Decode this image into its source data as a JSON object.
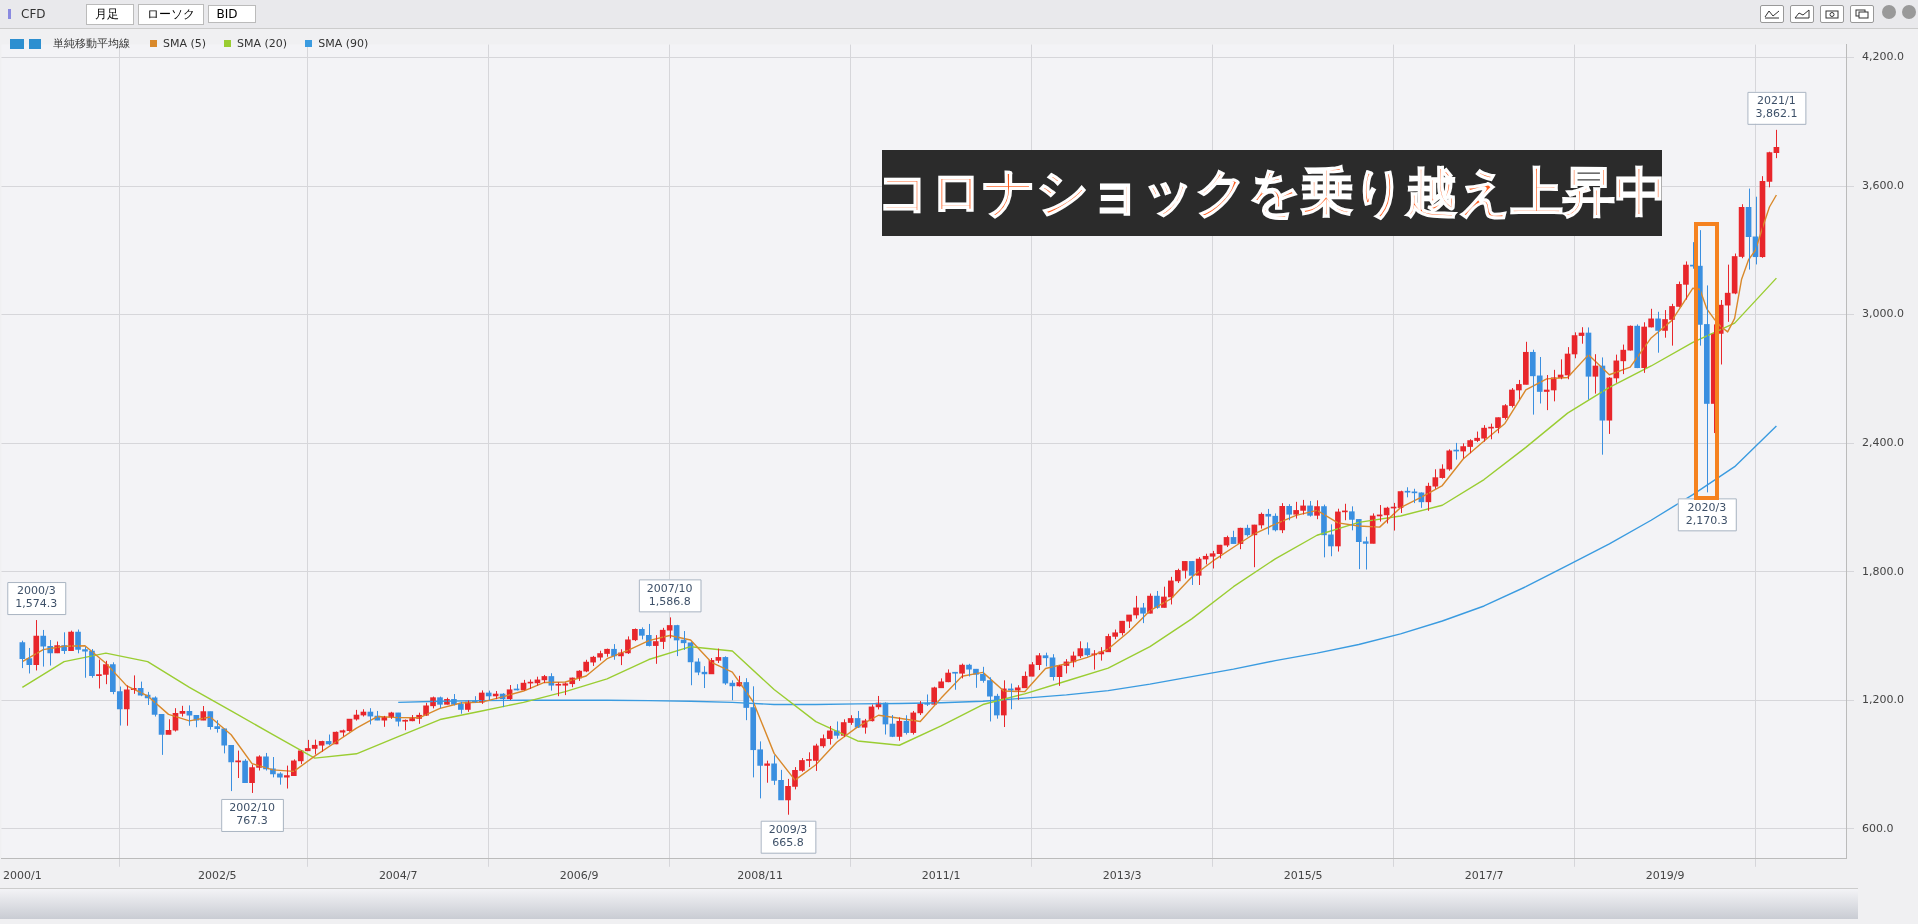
{
  "chart_data": {
    "type": "candlestick",
    "x": [
      "2000-01",
      "2000-02",
      "2000-03",
      "2000-04",
      "2000-05",
      "2000-06",
      "2000-07",
      "2000-08",
      "2000-09",
      "2000-10",
      "2000-11",
      "2000-12",
      "2001-01",
      "2001-02",
      "2001-03",
      "2001-04",
      "2001-05",
      "2001-06",
      "2001-07",
      "2001-08",
      "2001-09",
      "2001-10",
      "2001-11",
      "2001-12",
      "2002-01",
      "2002-02",
      "2002-03",
      "2002-04",
      "2002-05",
      "2002-06",
      "2002-07",
      "2002-08",
      "2002-09",
      "2002-10",
      "2002-11",
      "2002-12",
      "2003-01",
      "2003-02",
      "2003-03",
      "2003-04",
      "2003-05",
      "2003-06",
      "2003-07",
      "2003-08",
      "2003-09",
      "2003-10",
      "2003-11",
      "2003-12",
      "2004-01",
      "2004-02",
      "2004-03",
      "2004-04",
      "2004-05",
      "2004-06",
      "2004-07",
      "2004-08",
      "2004-09",
      "2004-10",
      "2004-11",
      "2004-12",
      "2005-01",
      "2005-02",
      "2005-03",
      "2005-04",
      "2005-05",
      "2005-06",
      "2005-07",
      "2005-08",
      "2005-09",
      "2005-10",
      "2005-11",
      "2005-12",
      "2006-01",
      "2006-02",
      "2006-03",
      "2006-04",
      "2006-05",
      "2006-06",
      "2006-07",
      "2006-08",
      "2006-09",
      "2006-10",
      "2006-11",
      "2006-12",
      "2007-01",
      "2007-02",
      "2007-03",
      "2007-04",
      "2007-05",
      "2007-06",
      "2007-07",
      "2007-08",
      "2007-09",
      "2007-10",
      "2007-11",
      "2007-12",
      "2008-01",
      "2008-02",
      "2008-03",
      "2008-04",
      "2008-05",
      "2008-06",
      "2008-07",
      "2008-08",
      "2008-09",
      "2008-10",
      "2008-11",
      "2008-12",
      "2009-01",
      "2009-02",
      "2009-03",
      "2009-04",
      "2009-05",
      "2009-06",
      "2009-07",
      "2009-08",
      "2009-09",
      "2009-10",
      "2009-11",
      "2009-12",
      "2010-01",
      "2010-02",
      "2010-03",
      "2010-04",
      "2010-05",
      "2010-06",
      "2010-07",
      "2010-08",
      "2010-09",
      "2010-10",
      "2010-11",
      "2010-12",
      "2011-01",
      "2011-02",
      "2011-03",
      "2011-04",
      "2011-05",
      "2011-06",
      "2011-07",
      "2011-08",
      "2011-09",
      "2011-10",
      "2011-11",
      "2011-12",
      "2012-01",
      "2012-02",
      "2012-03",
      "2012-04",
      "2012-05",
      "2012-06",
      "2012-07",
      "2012-08",
      "2012-09",
      "2012-10",
      "2012-11",
      "2012-12",
      "2013-01",
      "2013-02",
      "2013-03",
      "2013-04",
      "2013-05",
      "2013-06",
      "2013-07",
      "2013-08",
      "2013-09",
      "2013-10",
      "2013-11",
      "2013-12",
      "2014-01",
      "2014-02",
      "2014-03",
      "2014-04",
      "2014-05",
      "2014-06",
      "2014-07",
      "2014-08",
      "2014-09",
      "2014-10",
      "2014-11",
      "2014-12",
      "2015-01",
      "2015-02",
      "2015-03",
      "2015-04",
      "2015-05",
      "2015-06",
      "2015-07",
      "2015-08",
      "2015-09",
      "2015-10",
      "2015-11",
      "2015-12",
      "2016-01",
      "2016-02",
      "2016-03",
      "2016-04",
      "2016-05",
      "2016-06",
      "2016-07",
      "2016-08",
      "2016-09",
      "2016-10",
      "2016-11",
      "2016-12",
      "2017-01",
      "2017-02",
      "2017-03",
      "2017-04",
      "2017-05",
      "2017-06",
      "2017-07",
      "2017-08",
      "2017-09",
      "2017-10",
      "2017-11",
      "2017-12",
      "2018-01",
      "2018-02",
      "2018-03",
      "2018-04",
      "2018-05",
      "2018-06",
      "2018-07",
      "2018-08",
      "2018-09",
      "2018-10",
      "2018-11",
      "2018-12",
      "2019-01",
      "2019-02",
      "2019-03",
      "2019-04",
      "2019-05",
      "2019-06",
      "2019-07",
      "2019-08",
      "2019-09",
      "2019-10",
      "2019-11",
      "2019-12",
      "2020-01",
      "2020-02",
      "2020-03",
      "2020-04",
      "2020-05",
      "2020-06",
      "2020-07",
      "2020-08",
      "2020-09",
      "2020-10",
      "2020-11",
      "2020-12",
      "2021-01"
    ],
    "ohlc": [
      [
        1469,
        1478,
        1350,
        1394
      ],
      [
        1394,
        1444,
        1325,
        1366
      ],
      [
        1366,
        1574.3,
        1339,
        1499
      ],
      [
        1499,
        1528,
        1357,
        1452
      ],
      [
        1452,
        1481,
        1362,
        1421
      ],
      [
        1421,
        1474,
        1420,
        1455
      ],
      [
        1455,
        1517,
        1416,
        1431
      ],
      [
        1431,
        1525,
        1431,
        1518
      ],
      [
        1518,
        1530,
        1419,
        1437
      ],
      [
        1437,
        1449,
        1305,
        1429
      ],
      [
        1429,
        1439,
        1305,
        1315
      ],
      [
        1315,
        1390,
        1255,
        1320
      ],
      [
        1320,
        1384,
        1275,
        1366
      ],
      [
        1366,
        1377,
        1228,
        1240
      ],
      [
        1240,
        1264,
        1082,
        1160
      ],
      [
        1160,
        1269,
        1081,
        1249
      ],
      [
        1249,
        1316,
        1230,
        1256
      ],
      [
        1256,
        1287,
        1219,
        1224
      ],
      [
        1224,
        1239,
        1178,
        1211
      ],
      [
        1211,
        1218,
        1124,
        1134
      ],
      [
        1134,
        1135,
        945,
        1041
      ],
      [
        1041,
        1111,
        1041,
        1060
      ],
      [
        1060,
        1163,
        1054,
        1139
      ],
      [
        1139,
        1174,
        1124,
        1148
      ],
      [
        1148,
        1176,
        1081,
        1130
      ],
      [
        1130,
        1130,
        1074,
        1107
      ],
      [
        1107,
        1173,
        1107,
        1147
      ],
      [
        1147,
        1147,
        1063,
        1077
      ],
      [
        1077,
        1107,
        1049,
        1067
      ],
      [
        1067,
        1067,
        952,
        990
      ],
      [
        990,
        990,
        776,
        912
      ],
      [
        912,
        965,
        837,
        916
      ],
      [
        916,
        925,
        815,
        815
      ],
      [
        815,
        900,
        767.3,
        886
      ],
      [
        886,
        943,
        872,
        936
      ],
      [
        936,
        954,
        872,
        880
      ],
      [
        880,
        935,
        840,
        856
      ],
      [
        856,
        864,
        806,
        841
      ],
      [
        841,
        895,
        788,
        848
      ],
      [
        848,
        924,
        847,
        917
      ],
      [
        917,
        966,
        902,
        964
      ],
      [
        964,
        1015,
        963,
        975
      ],
      [
        975,
        1016,
        947,
        990
      ],
      [
        990,
        1011,
        960,
        1008
      ],
      [
        1008,
        1040,
        990,
        996
      ],
      [
        996,
        1054,
        995,
        1051
      ],
      [
        1051,
        1063,
        1031,
        1058
      ],
      [
        1058,
        1112,
        1053,
        1112
      ],
      [
        1112,
        1155,
        1105,
        1131
      ],
      [
        1131,
        1158,
        1124,
        1145
      ],
      [
        1145,
        1163,
        1087,
        1126
      ],
      [
        1126,
        1150,
        1107,
        1107
      ],
      [
        1107,
        1127,
        1076,
        1121
      ],
      [
        1121,
        1146,
        1113,
        1141
      ],
      [
        1141,
        1141,
        1078,
        1102
      ],
      [
        1102,
        1110,
        1060,
        1104
      ],
      [
        1104,
        1131,
        1102,
        1115
      ],
      [
        1115,
        1142,
        1090,
        1130
      ],
      [
        1130,
        1188,
        1127,
        1174
      ],
      [
        1174,
        1217,
        1162,
        1212
      ],
      [
        1212,
        1217,
        1163,
        1181
      ],
      [
        1181,
        1212,
        1180,
        1204
      ],
      [
        1204,
        1229,
        1176,
        1181
      ],
      [
        1181,
        1192,
        1137,
        1157
      ],
      [
        1157,
        1199,
        1146,
        1192
      ],
      [
        1192,
        1219,
        1188,
        1191
      ],
      [
        1191,
        1246,
        1183,
        1234
      ],
      [
        1234,
        1245,
        1201,
        1220
      ],
      [
        1220,
        1243,
        1205,
        1229
      ],
      [
        1229,
        1233,
        1168,
        1207
      ],
      [
        1207,
        1271,
        1201,
        1249
      ],
      [
        1249,
        1275,
        1246,
        1248
      ],
      [
        1248,
        1295,
        1245,
        1280
      ],
      [
        1280,
        1297,
        1253,
        1281
      ],
      [
        1281,
        1310,
        1268,
        1295
      ],
      [
        1295,
        1318,
        1280,
        1311
      ],
      [
        1311,
        1326,
        1245,
        1270
      ],
      [
        1270,
        1284,
        1219,
        1270
      ],
      [
        1270,
        1283,
        1224,
        1277
      ],
      [
        1277,
        1306,
        1261,
        1304
      ],
      [
        1304,
        1340,
        1290,
        1336
      ],
      [
        1336,
        1389,
        1331,
        1378
      ],
      [
        1378,
        1407,
        1360,
        1401
      ],
      [
        1401,
        1431,
        1385,
        1418
      ],
      [
        1418,
        1441,
        1403,
        1438
      ],
      [
        1438,
        1462,
        1389,
        1407
      ],
      [
        1407,
        1438,
        1364,
        1421
      ],
      [
        1421,
        1498,
        1416,
        1482
      ],
      [
        1482,
        1535,
        1476,
        1531
      ],
      [
        1531,
        1540,
        1484,
        1503
      ],
      [
        1503,
        1556,
        1451,
        1455
      ],
      [
        1455,
        1504,
        1370,
        1474
      ],
      [
        1474,
        1538,
        1439,
        1527
      ],
      [
        1527,
        1586.8,
        1489,
        1549
      ],
      [
        1549,
        1552,
        1406,
        1481
      ],
      [
        1481,
        1523,
        1435,
        1468
      ],
      [
        1468,
        1472,
        1270,
        1379
      ],
      [
        1379,
        1396,
        1317,
        1331
      ],
      [
        1331,
        1359,
        1257,
        1323
      ],
      [
        1323,
        1397,
        1323,
        1386
      ],
      [
        1386,
        1441,
        1374,
        1400
      ],
      [
        1400,
        1405,
        1272,
        1280
      ],
      [
        1280,
        1293,
        1200,
        1267
      ],
      [
        1267,
        1314,
        1264,
        1283
      ],
      [
        1283,
        1303,
        1107,
        1166
      ],
      [
        1166,
        1265,
        840,
        969
      ],
      [
        969,
        1008,
        742,
        896
      ],
      [
        896,
        918,
        815,
        903
      ],
      [
        903,
        943,
        805,
        826
      ],
      [
        826,
        875,
        735,
        735
      ],
      [
        735,
        833,
        665.8,
        798
      ],
      [
        798,
        888,
        784,
        873
      ],
      [
        873,
        930,
        866,
        919
      ],
      [
        919,
        957,
        888,
        919
      ],
      [
        919,
        997,
        870,
        987
      ],
      [
        987,
        1040,
        978,
        1021
      ],
      [
        1021,
        1080,
        993,
        1057
      ],
      [
        1057,
        1101,
        1021,
        1036
      ],
      [
        1036,
        1111,
        1029,
        1096
      ],
      [
        1096,
        1130,
        1085,
        1115
      ],
      [
        1115,
        1150,
        1071,
        1074
      ],
      [
        1074,
        1113,
        1044,
        1104
      ],
      [
        1104,
        1180,
        1101,
        1169
      ],
      [
        1169,
        1220,
        1157,
        1187
      ],
      [
        1187,
        1190,
        1040,
        1089
      ],
      [
        1089,
        1131,
        1028,
        1031
      ],
      [
        1031,
        1120,
        1011,
        1102
      ],
      [
        1102,
        1130,
        1040,
        1049
      ],
      [
        1049,
        1150,
        1040,
        1141
      ],
      [
        1141,
        1196,
        1131,
        1183
      ],
      [
        1183,
        1227,
        1173,
        1181
      ],
      [
        1181,
        1263,
        1181,
        1258
      ],
      [
        1258,
        1302,
        1258,
        1286
      ],
      [
        1286,
        1344,
        1284,
        1327
      ],
      [
        1327,
        1332,
        1249,
        1326
      ],
      [
        1326,
        1371,
        1302,
        1364
      ],
      [
        1364,
        1370,
        1311,
        1345
      ],
      [
        1345,
        1346,
        1258,
        1321
      ],
      [
        1321,
        1356,
        1282,
        1292
      ],
      [
        1292,
        1307,
        1101,
        1219
      ],
      [
        1219,
        1230,
        1114,
        1131
      ],
      [
        1131,
        1293,
        1075,
        1253
      ],
      [
        1253,
        1278,
        1158,
        1247
      ],
      [
        1247,
        1270,
        1202,
        1258
      ],
      [
        1258,
        1334,
        1258,
        1312
      ],
      [
        1312,
        1378,
        1312,
        1366
      ],
      [
        1366,
        1420,
        1341,
        1408
      ],
      [
        1408,
        1422,
        1358,
        1398
      ],
      [
        1398,
        1415,
        1292,
        1310
      ],
      [
        1310,
        1364,
        1267,
        1362
      ],
      [
        1362,
        1392,
        1325,
        1379
      ],
      [
        1379,
        1427,
        1354,
        1407
      ],
      [
        1407,
        1475,
        1397,
        1441
      ],
      [
        1441,
        1470,
        1404,
        1412
      ],
      [
        1412,
        1434,
        1343,
        1416
      ],
      [
        1416,
        1448,
        1385,
        1426
      ],
      [
        1426,
        1510,
        1426,
        1498
      ],
      [
        1498,
        1530,
        1485,
        1515
      ],
      [
        1515,
        1570,
        1502,
        1569
      ],
      [
        1569,
        1598,
        1537,
        1598
      ],
      [
        1598,
        1687,
        1581,
        1631
      ],
      [
        1631,
        1654,
        1560,
        1606
      ],
      [
        1606,
        1698,
        1605,
        1686
      ],
      [
        1686,
        1710,
        1627,
        1633
      ],
      [
        1633,
        1730,
        1633,
        1682
      ],
      [
        1682,
        1776,
        1647,
        1757
      ],
      [
        1757,
        1814,
        1747,
        1806
      ],
      [
        1806,
        1849,
        1768,
        1848
      ],
      [
        1848,
        1850,
        1738,
        1783
      ],
      [
        1783,
        1868,
        1738,
        1859
      ],
      [
        1859,
        1884,
        1834,
        1872
      ],
      [
        1872,
        1897,
        1815,
        1884
      ],
      [
        1884,
        1925,
        1862,
        1924
      ],
      [
        1924,
        1968,
        1915,
        1960
      ],
      [
        1960,
        1991,
        1931,
        1931
      ],
      [
        1931,
        2005,
        1905,
        2003
      ],
      [
        2003,
        2019,
        1964,
        1972
      ],
      [
        1972,
        2019,
        1821,
        2018
      ],
      [
        2018,
        2076,
        2001,
        2068
      ],
      [
        2068,
        2093,
        1973,
        2059
      ],
      [
        2059,
        2072,
        1988,
        1995
      ],
      [
        1995,
        2120,
        1980,
        2105
      ],
      [
        2105,
        2115,
        2040,
        2068
      ],
      [
        2068,
        2126,
        2048,
        2086
      ],
      [
        2086,
        2135,
        2067,
        2107
      ],
      [
        2107,
        2130,
        2057,
        2063
      ],
      [
        2063,
        2133,
        2045,
        2104
      ],
      [
        2104,
        2113,
        1867,
        1972
      ],
      [
        1972,
        2021,
        1872,
        1920
      ],
      [
        1920,
        2094,
        1894,
        2079
      ],
      [
        2079,
        2117,
        2040,
        2080
      ],
      [
        2080,
        2105,
        1993,
        2044
      ],
      [
        2044,
        2044,
        1812,
        1940
      ],
      [
        1940,
        1963,
        1810,
        1932
      ],
      [
        1932,
        2072,
        1932,
        2060
      ],
      [
        2060,
        2111,
        2034,
        2065
      ],
      [
        2065,
        2103,
        2025,
        2097
      ],
      [
        2097,
        2121,
        1992,
        2099
      ],
      [
        2099,
        2178,
        2074,
        2174
      ],
      [
        2174,
        2194,
        2147,
        2171
      ],
      [
        2171,
        2187,
        2120,
        2168
      ],
      [
        2168,
        2170,
        2098,
        2126
      ],
      [
        2126,
        2215,
        2084,
        2199
      ],
      [
        2199,
        2278,
        2187,
        2239
      ],
      [
        2239,
        2301,
        2234,
        2279
      ],
      [
        2279,
        2371,
        2271,
        2364
      ],
      [
        2364,
        2401,
        2323,
        2363
      ],
      [
        2363,
        2399,
        2329,
        2384
      ],
      [
        2384,
        2418,
        2353,
        2412
      ],
      [
        2412,
        2454,
        2405,
        2423
      ],
      [
        2423,
        2484,
        2407,
        2470
      ],
      [
        2470,
        2491,
        2418,
        2472
      ],
      [
        2472,
        2520,
        2446,
        2519
      ],
      [
        2519,
        2582,
        2510,
        2575
      ],
      [
        2575,
        2657,
        2566,
        2648
      ],
      [
        2648,
        2695,
        2605,
        2674
      ],
      [
        2674,
        2873,
        2674,
        2824
      ],
      [
        2824,
        2836,
        2533,
        2714
      ],
      [
        2714,
        2802,
        2585,
        2641
      ],
      [
        2641,
        2718,
        2554,
        2648
      ],
      [
        2648,
        2742,
        2595,
        2705
      ],
      [
        2705,
        2791,
        2698,
        2718
      ],
      [
        2718,
        2848,
        2698,
        2816
      ],
      [
        2816,
        2917,
        2796,
        2902
      ],
      [
        2902,
        2941,
        2864,
        2914
      ],
      [
        2914,
        2940,
        2603,
        2712
      ],
      [
        2712,
        2815,
        2631,
        2760
      ],
      [
        2760,
        2800,
        2346,
        2507
      ],
      [
        2507,
        2708,
        2443,
        2704
      ],
      [
        2704,
        2813,
        2682,
        2784
      ],
      [
        2784,
        2860,
        2722,
        2834
      ],
      [
        2834,
        2949,
        2832,
        2946
      ],
      [
        2946,
        2954,
        2750,
        2752
      ],
      [
        2752,
        2964,
        2728,
        2942
      ],
      [
        2942,
        3027,
        2940,
        2980
      ],
      [
        2980,
        3013,
        2822,
        2926
      ],
      [
        2926,
        3021,
        2892,
        2977
      ],
      [
        2977,
        3050,
        2855,
        3038
      ],
      [
        3038,
        3154,
        3034,
        3141
      ],
      [
        3141,
        3248,
        3070,
        3231
      ],
      [
        3231,
        3338,
        3214,
        3226
      ],
      [
        3226,
        3394,
        2855,
        2954
      ],
      [
        2954,
        3136,
        2170.3,
        2585
      ],
      [
        2585,
        2954,
        2447,
        2912
      ],
      [
        2912,
        3068,
        2767,
        3044
      ],
      [
        3044,
        3233,
        2966,
        3100
      ],
      [
        3100,
        3285,
        3095,
        3271
      ],
      [
        3271,
        3515,
        3263,
        3500
      ],
      [
        3500,
        3588,
        3210,
        3363
      ],
      [
        3363,
        3550,
        3234,
        3270
      ],
      [
        3270,
        3646,
        3265,
        3622
      ],
      [
        3622,
        3760,
        3594,
        3756
      ],
      [
        3756,
        3862.1,
        3730,
        3780
      ]
    ],
    "colors": [
      "#3a8fe0",
      "#3a8fe0",
      "#e8262b",
      "#3a8fe0",
      "#3a8fe0",
      "#e8262b",
      "#3a8fe0",
      "#e8262b",
      "#3a8fe0",
      "#3a8fe0",
      "#3a8fe0",
      "#e8262b",
      "#e8262b",
      "#3a8fe0",
      "#3a8fe0",
      "#e8262b",
      "#e8262b",
      "#3a8fe0",
      "#3a8fe0",
      "#3a8fe0",
      "#3a8fe0",
      "#e8262b",
      "#e8262b",
      "#e8262b",
      "#3a8fe0",
      "#3a8fe0",
      "#e8262b",
      "#3a8fe0",
      "#3a8fe0",
      "#3a8fe0",
      "#3a8fe0",
      "#e8262b",
      "#3a8fe0",
      "#e8262b",
      "#e8262b",
      "#3a8fe0",
      "#3a8fe0",
      "#3a8fe0",
      "#e8262b",
      "#e8262b",
      "#e8262b",
      "#e8262b",
      "#e8262b",
      "#e8262b",
      "#3a8fe0",
      "#e8262b",
      "#e8262b",
      "#e8262b",
      "#e8262b",
      "#e8262b",
      "#3a8fe0",
      "#3a8fe0",
      "#e8262b",
      "#e8262b",
      "#3a8fe0",
      "#e8262b",
      "#e8262b",
      "#e8262b",
      "#e8262b",
      "#e8262b",
      "#3a8fe0",
      "#e8262b",
      "#3a8fe0",
      "#3a8fe0",
      "#e8262b",
      "#3a8fe0",
      "#e8262b",
      "#3a8fe0",
      "#e8262b",
      "#3a8fe0",
      "#e8262b",
      "#3a8fe0",
      "#e8262b",
      "#e8262b",
      "#e8262b",
      "#e8262b",
      "#3a8fe0",
      "#e8262b",
      "#e8262b",
      "#e8262b",
      "#e8262b",
      "#e8262b",
      "#e8262b",
      "#e8262b",
      "#e8262b",
      "#3a8fe0",
      "#e8262b",
      "#e8262b",
      "#e8262b",
      "#3a8fe0",
      "#3a8fe0",
      "#e8262b",
      "#e8262b",
      "#e8262b",
      "#3a8fe0",
      "#3a8fe0",
      "#3a8fe0",
      "#3a8fe0",
      "#3a8fe0",
      "#e8262b",
      "#e8262b",
      "#3a8fe0",
      "#3a8fe0",
      "#e8262b",
      "#3a8fe0",
      "#3a8fe0",
      "#3a8fe0",
      "#e8262b",
      "#3a8fe0",
      "#3a8fe0",
      "#e8262b",
      "#e8262b",
      "#e8262b",
      "#e8262b",
      "#e8262b",
      "#e8262b",
      "#e8262b",
      "#3a8fe0",
      "#e8262b",
      "#e8262b",
      "#3a8fe0",
      "#e8262b",
      "#e8262b",
      "#e8262b",
      "#3a8fe0",
      "#3a8fe0",
      "#e8262b",
      "#3a8fe0",
      "#e8262b",
      "#e8262b",
      "#3a8fe0",
      "#e8262b",
      "#e8262b",
      "#e8262b",
      "#3a8fe0",
      "#e8262b",
      "#3a8fe0",
      "#3a8fe0",
      "#3a8fe0",
      "#3a8fe0",
      "#3a8fe0",
      "#e8262b",
      "#3a8fe0",
      "#e8262b",
      "#e8262b",
      "#e8262b",
      "#e8262b",
      "#3a8fe0",
      "#3a8fe0",
      "#e8262b",
      "#e8262b",
      "#e8262b",
      "#e8262b",
      "#3a8fe0",
      "#e8262b",
      "#e8262b",
      "#e8262b",
      "#e8262b",
      "#e8262b",
      "#e8262b",
      "#e8262b",
      "#3a8fe0",
      "#e8262b",
      "#3a8fe0",
      "#e8262b",
      "#e8262b",
      "#e8262b",
      "#e8262b",
      "#3a8fe0",
      "#e8262b",
      "#e8262b",
      "#e8262b",
      "#e8262b",
      "#e8262b",
      "#3a8fe0",
      "#e8262b",
      "#3a8fe0",
      "#e8262b",
      "#e8262b",
      "#3a8fe0",
      "#3a8fe0",
      "#e8262b",
      "#3a8fe0",
      "#e8262b",
      "#e8262b",
      "#3a8fe0",
      "#e8262b",
      "#3a8fe0",
      "#3a8fe0",
      "#e8262b",
      "#e8262b",
      "#3a8fe0",
      "#3a8fe0",
      "#3a8fe0",
      "#e8262b",
      "#e8262b",
      "#e8262b",
      "#e8262b",
      "#e8262b",
      "#3a8fe0",
      "#3a8fe0",
      "#3a8fe0",
      "#e8262b",
      "#e8262b",
      "#e8262b",
      "#e8262b",
      "#3a8fe0",
      "#e8262b",
      "#e8262b",
      "#e8262b",
      "#e8262b",
      "#e8262b",
      "#e8262b",
      "#e8262b",
      "#e8262b",
      "#e8262b",
      "#e8262b",
      "#3a8fe0",
      "#3a8fe0",
      "#e8262b",
      "#e8262b",
      "#e8262b",
      "#e8262b",
      "#e8262b",
      "#e8262b",
      "#3a8fe0",
      "#e8262b",
      "#3a8fe0",
      "#e8262b",
      "#e8262b",
      "#e8262b",
      "#e8262b",
      "#3a8fe0",
      "#e8262b",
      "#e8262b",
      "#3a8fe0",
      "#e8262b",
      "#e8262b",
      "#e8262b",
      "#e8262b",
      "#3a8fe0",
      "#3a8fe0",
      "#3a8fe0",
      "#e8262b",
      "#e8262b",
      "#e8262b",
      "#e8262b",
      "#e8262b",
      "#3a8fe0",
      "#3a8fe0",
      "#e8262b",
      "#e8262b",
      "#e8262b"
    ],
    "series": [
      {
        "type": "line",
        "name": "SMA (5)",
        "color": "#d9892b",
        "x": [
          "2000-01",
          "2000-04",
          "2000-07",
          "2000-10",
          "2001-01",
          "2001-04",
          "2001-07",
          "2001-10",
          "2002-01",
          "2002-04",
          "2002-07",
          "2002-10",
          "2003-01",
          "2003-04",
          "2003-07",
          "2003-10",
          "2004-01",
          "2004-04",
          "2004-07",
          "2004-10",
          "2005-01",
          "2005-04",
          "2005-07",
          "2005-10",
          "2006-01",
          "2006-04",
          "2006-07",
          "2006-10",
          "2007-01",
          "2007-04",
          "2007-07",
          "2007-10",
          "2008-01",
          "2008-04",
          "2008-07",
          "2008-10",
          "2009-01",
          "2009-04",
          "2009-07",
          "2009-10",
          "2010-01",
          "2010-04",
          "2010-07",
          "2010-10",
          "2011-01",
          "2011-04",
          "2011-07",
          "2011-10",
          "2012-01",
          "2012-04",
          "2012-07",
          "2012-10",
          "2013-01",
          "2013-04",
          "2013-07",
          "2013-10",
          "2014-01",
          "2014-04",
          "2014-07",
          "2014-10",
          "2015-01",
          "2015-04",
          "2015-07",
          "2015-10",
          "2016-01",
          "2016-04",
          "2016-07",
          "2016-10",
          "2017-01",
          "2017-04",
          "2017-07",
          "2017-10",
          "2018-01",
          "2018-04",
          "2018-07",
          "2018-10",
          "2019-01",
          "2019-04",
          "2019-07",
          "2019-10",
          "2020-01",
          "2020-02",
          "2020-03",
          "2020-04",
          "2020-05",
          "2020-06",
          "2020-07",
          "2020-08",
          "2020-09",
          "2020-10",
          "2020-11",
          "2020-12",
          "2021-01"
        ],
        "values": [
          1380,
          1436,
          1452,
          1454,
          1373,
          1267,
          1220,
          1134,
          1104,
          1122,
          1039,
          904,
          875,
          868,
          939,
          1004,
          1070,
          1124,
          1119,
          1118,
          1162,
          1187,
          1191,
          1216,
          1243,
          1283,
          1285,
          1313,
          1394,
          1433,
          1478,
          1502,
          1481,
          1377,
          1331,
          1193,
          952,
          827,
          899,
          1004,
          1076,
          1130,
          1116,
          1101,
          1210,
          1312,
          1330,
          1243,
          1240,
          1348,
          1371,
          1400,
          1439,
          1521,
          1618,
          1673,
          1775,
          1849,
          1914,
          1977,
          2022,
          2063,
          2086,
          2028,
          2013,
          2008,
          2099,
          2148,
          2202,
          2326,
          2410,
          2492,
          2648,
          2700,
          2706,
          2812,
          2719,
          2755,
          2891,
          2973,
          3123,
          3118,
          3027,
          2982,
          2944,
          2919,
          2982,
          3165,
          3256,
          3301,
          3405,
          3502,
          3558
        ]
      },
      {
        "type": "line",
        "name": "SMA (20)",
        "color": "#9acd32",
        "x": [
          "2000-01",
          "2000-07",
          "2001-01",
          "2001-07",
          "2002-01",
          "2002-07",
          "2003-01",
          "2003-07",
          "2004-01",
          "2004-07",
          "2005-01",
          "2005-07",
          "2006-01",
          "2006-07",
          "2007-01",
          "2007-07",
          "2008-01",
          "2008-07",
          "2009-01",
          "2009-07",
          "2010-01",
          "2010-07",
          "2011-01",
          "2011-07",
          "2012-01",
          "2012-07",
          "2013-01",
          "2013-07",
          "2014-01",
          "2014-07",
          "2015-01",
          "2015-07",
          "2016-01",
          "2016-07",
          "2017-01",
          "2017-07",
          "2018-01",
          "2018-07",
          "2019-01",
          "2019-07",
          "2020-01",
          "2020-07",
          "2021-01"
        ],
        "values": [
          1260,
          1380,
          1420,
          1380,
          1260,
          1150,
          1040,
          930,
          950,
          1030,
          1110,
          1150,
          1190,
          1240,
          1300,
          1390,
          1450,
          1430,
          1250,
          1100,
          1010,
          990,
          1080,
          1180,
          1230,
          1290,
          1350,
          1450,
          1580,
          1730,
          1860,
          1970,
          2030,
          2060,
          2110,
          2230,
          2380,
          2540,
          2660,
          2760,
          2870,
          2960,
          3170
        ]
      },
      {
        "type": "line",
        "name": "SMA (90)",
        "color": "#3a9be0",
        "x": [
          "2004-07",
          "2005-01",
          "2005-07",
          "2006-01",
          "2006-07",
          "2007-01",
          "2007-07",
          "2008-01",
          "2008-07",
          "2009-01",
          "2009-07",
          "2010-01",
          "2010-07",
          "2011-01",
          "2011-07",
          "2012-01",
          "2012-07",
          "2013-01",
          "2013-07",
          "2014-01",
          "2014-07",
          "2015-01",
          "2015-07",
          "2016-01",
          "2016-07",
          "2017-01",
          "2017-07",
          "2018-01",
          "2018-07",
          "2019-01",
          "2019-07",
          "2020-01",
          "2020-07",
          "2021-01"
        ],
        "values": [
          1190,
          1195,
          1198,
          1200,
          1200,
          1200,
          1198,
          1195,
          1190,
          1180,
          1180,
          1183,
          1185,
          1188,
          1195,
          1210,
          1225,
          1245,
          1275,
          1310,
          1345,
          1385,
          1420,
          1460,
          1510,
          1570,
          1640,
          1730,
          1830,
          1930,
          2040,
          2160,
          2290,
          2480
        ]
      }
    ],
    "xlim": [
      "1999-10",
      "2021-11"
    ],
    "xticks": [
      {
        "value": "2000-01",
        "label": "2000/1"
      },
      {
        "value": "2002-05",
        "label": "2002/5"
      },
      {
        "value": "2004-07",
        "label": "2004/7"
      },
      {
        "value": "2006-09",
        "label": "2006/9"
      },
      {
        "value": "2008-11",
        "label": "2008/11"
      },
      {
        "value": "2011-01",
        "label": "2011/1"
      },
      {
        "value": "2013-03",
        "label": "2013/3"
      },
      {
        "value": "2015-05",
        "label": "2015/5"
      },
      {
        "value": "2017-07",
        "label": "2017/7"
      },
      {
        "value": "2019-09",
        "label": "2019/9"
      }
    ],
    "ylim": [
      460,
      4260
    ],
    "yticks": [
      {
        "value": 600,
        "label": "600.0"
      },
      {
        "value": 1200,
        "label": "1,200.0"
      },
      {
        "value": 1800,
        "label": "1,800.0"
      },
      {
        "value": 2400,
        "label": "2,400.0"
      },
      {
        "value": 3000,
        "label": "3,000.0"
      },
      {
        "value": 3600,
        "label": "3,600.0"
      },
      {
        "value": 4200,
        "label": "4,200.0"
      }
    ],
    "grid": true,
    "legend": "top left",
    "legend_title": "単純移動平均線",
    "marker": "none",
    "line_style": "solid",
    "annotations": [
      "コロナショックを乗り越え上昇中",
      "CFD",
      "月足",
      "ローソク",
      "BID",
      {
        "text": "2000/3\n1,574.3",
        "x": "2000-03",
        "y": 1574.3
      },
      {
        "text": "2002/10\n767.3",
        "x": "2002-10",
        "y": 767.3
      },
      {
        "text": "2007/10\n1,586.8",
        "x": "2007-10",
        "y": 1586.8
      },
      {
        "text": "2009/3\n665.8",
        "x": "2009-03",
        "y": 665.8
      },
      {
        "text": "2020/3\n2,170.3",
        "x": "2020-03",
        "y": 2170.3
      },
      {
        "text": "2021/1\n3,862.1",
        "x": "2021-01",
        "y": 3862.1
      }
    ]
  }
}
